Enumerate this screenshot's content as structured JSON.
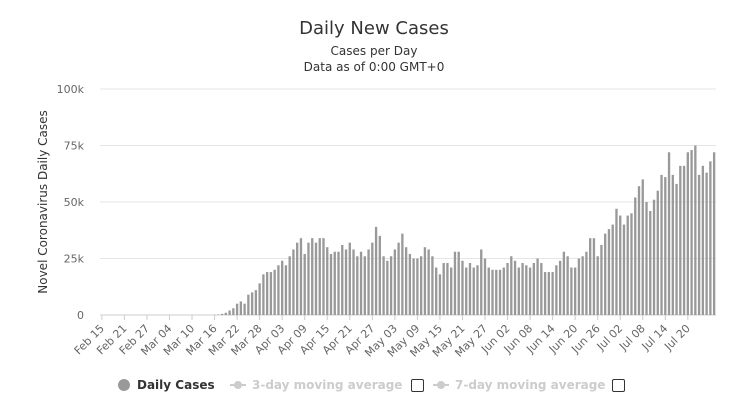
{
  "chart_data": {
    "type": "bar",
    "title": "Daily New Cases",
    "subtitle_lines": [
      "Cases per Day",
      "Data as of 0:00 GMT+0"
    ],
    "ylabel": "Novel Coronavirus Daily Cases",
    "ylim": [
      0,
      100000
    ],
    "yticks": [
      0,
      25000,
      50000,
      75000,
      100000
    ],
    "ytick_labels": [
      "0",
      "25k",
      "50k",
      "75k",
      "100k"
    ],
    "x_start": "Feb 15",
    "x_end": "Jul 21",
    "xtick_labels": [
      "Feb 15",
      "Feb 21",
      "Feb 27",
      "Mar 04",
      "Mar 10",
      "Mar 16",
      "Mar 22",
      "Mar 28",
      "Apr 03",
      "Apr 09",
      "Apr 15",
      "Apr 21",
      "Apr 27",
      "May 03",
      "May 09",
      "May 15",
      "May 21",
      "May 27",
      "Jun 02",
      "Jun 08",
      "Jun 14",
      "Jun 20",
      "Jun 26",
      "Jul 02",
      "Jul 08",
      "Jul 14",
      "Jul 20"
    ],
    "xtick_step_days": 6,
    "grid": true,
    "series": [
      {
        "name": "Daily Cases",
        "color": "#999999",
        "values": [
          0,
          0,
          0,
          0,
          0,
          0,
          0,
          0,
          0,
          0,
          0,
          0,
          0,
          0,
          0,
          0,
          0,
          0,
          0,
          0,
          0,
          0,
          0,
          0,
          0,
          0,
          0,
          0,
          0,
          0,
          100,
          200,
          500,
          1000,
          2000,
          3000,
          5000,
          6000,
          5000,
          9000,
          10000,
          11000,
          14000,
          18000,
          19000,
          19000,
          20000,
          22000,
          24000,
          22000,
          26000,
          29000,
          32000,
          34000,
          27000,
          32000,
          34000,
          32000,
          34000,
          34000,
          30000,
          27000,
          28000,
          28000,
          31000,
          29000,
          32000,
          29000,
          26000,
          28000,
          26000,
          29000,
          32000,
          39000,
          35000,
          26000,
          24000,
          26000,
          29000,
          32000,
          36000,
          30000,
          27000,
          25000,
          25000,
          26000,
          30000,
          29000,
          26000,
          21000,
          18000,
          23000,
          23000,
          21000,
          28000,
          28000,
          24000,
          21000,
          23000,
          21000,
          22000,
          29000,
          25000,
          21000,
          20000,
          20000,
          20000,
          21000,
          23000,
          26000,
          24000,
          21000,
          23000,
          22000,
          21000,
          23000,
          25000,
          23000,
          19000,
          19000,
          19000,
          22000,
          24000,
          28000,
          26000,
          21000,
          21000,
          25000,
          26000,
          28000,
          34000,
          34000,
          26000,
          31000,
          36000,
          38000,
          40000,
          47000,
          44000,
          40000,
          44000,
          45000,
          52000,
          57000,
          60000,
          50000,
          46000,
          51000,
          55000,
          62000,
          61000,
          72000,
          62000,
          58000,
          66000,
          66000,
          72000,
          73000,
          75000,
          62000,
          66000,
          63000,
          68000,
          72000
        ]
      }
    ]
  },
  "legend": {
    "items": [
      {
        "label": "Daily Cases",
        "color": "#999999"
      },
      {
        "label": "3-day moving average",
        "color": "#cccccc"
      },
      {
        "label": "7-day moving average",
        "color": "#cccccc"
      }
    ]
  }
}
